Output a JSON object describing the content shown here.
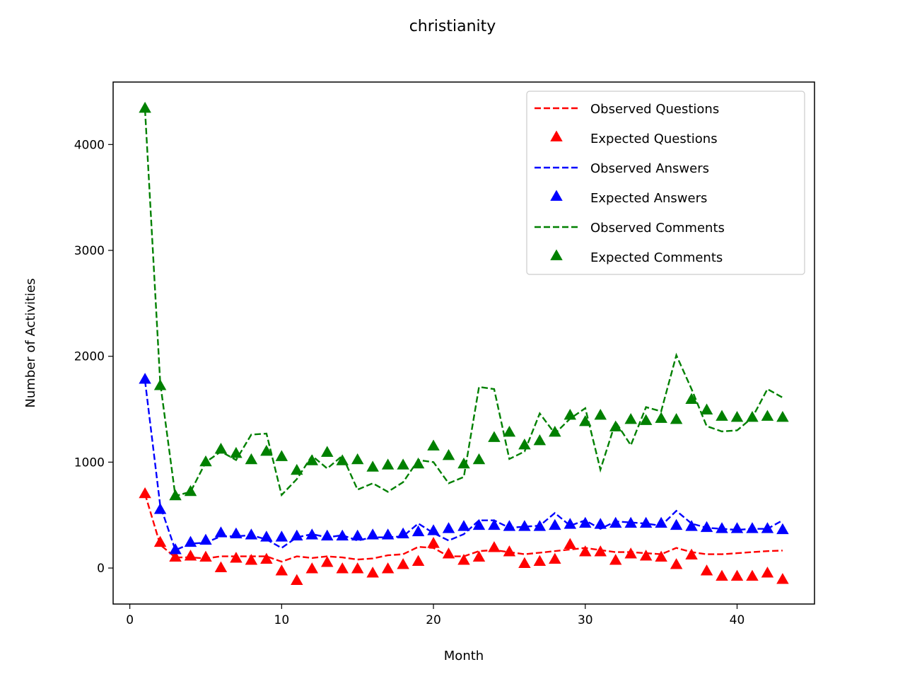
{
  "chart_data": {
    "type": "line",
    "title": "christianity",
    "xlabel": "Month",
    "ylabel": "Number of Activities",
    "xlim": [
      -1.1,
      45.1
    ],
    "ylim": [
      -340,
      4590
    ],
    "xticks": [
      0,
      10,
      20,
      30,
      40
    ],
    "yticks": [
      0,
      1000,
      2000,
      3000,
      4000
    ],
    "grid": false,
    "legend": {
      "placement": "top-right"
    },
    "x": [
      1,
      2,
      3,
      4,
      5,
      6,
      7,
      8,
      9,
      10,
      11,
      12,
      13,
      14,
      15,
      16,
      17,
      18,
      19,
      20,
      21,
      22,
      23,
      24,
      25,
      26,
      27,
      28,
      29,
      30,
      31,
      32,
      33,
      34,
      35,
      36,
      37,
      38,
      39,
      40,
      41,
      42,
      43
    ],
    "series": [
      {
        "name": "Observed Questions",
        "style": "dashed-line",
        "color": "#ff0000",
        "values": [
          700,
          220,
          100,
          100,
          90,
          110,
          110,
          110,
          110,
          60,
          110,
          95,
          110,
          100,
          80,
          90,
          120,
          130,
          200,
          190,
          110,
          110,
          160,
          170,
          150,
          130,
          145,
          160,
          175,
          190,
          170,
          150,
          150,
          140,
          130,
          190,
          150,
          130,
          130,
          140,
          150,
          160,
          165
        ]
      },
      {
        "name": "Expected Questions",
        "style": "triangle-markers",
        "color": "#ff0000",
        "values": [
          700,
          240,
          100,
          110,
          100,
          0,
          90,
          70,
          80,
          -30,
          -120,
          -10,
          50,
          -10,
          -10,
          -50,
          -10,
          30,
          60,
          230,
          130,
          70,
          100,
          190,
          150,
          40,
          60,
          80,
          220,
          150,
          150,
          70,
          130,
          110,
          100,
          30,
          120,
          -30,
          -80,
          -80,
          -80,
          -50,
          -110
        ]
      },
      {
        "name": "Observed Answers",
        "style": "dashed-line",
        "color": "#0000ff",
        "values": [
          1770,
          590,
          170,
          230,
          240,
          300,
          300,
          310,
          270,
          190,
          290,
          320,
          290,
          310,
          260,
          290,
          290,
          300,
          420,
          330,
          260,
          320,
          450,
          450,
          380,
          390,
          400,
          520,
          400,
          450,
          370,
          440,
          430,
          420,
          400,
          540,
          420,
          380,
          370,
          360,
          370,
          370,
          450
        ]
      },
      {
        "name": "Expected Answers",
        "style": "triangle-markers",
        "color": "#0000ff",
        "values": [
          1780,
          550,
          170,
          240,
          260,
          330,
          320,
          310,
          290,
          290,
          300,
          310,
          300,
          300,
          300,
          310,
          310,
          320,
          340,
          350,
          370,
          390,
          400,
          400,
          390,
          390,
          390,
          400,
          410,
          420,
          410,
          420,
          420,
          420,
          420,
          400,
          390,
          380,
          370,
          370,
          370,
          370,
          360
        ]
      },
      {
        "name": "Observed Comments",
        "style": "dashed-line",
        "color": "#008000",
        "values": [
          4330,
          1750,
          680,
          720,
          1000,
          1100,
          1020,
          1260,
          1270,
          690,
          840,
          1060,
          940,
          1060,
          740,
          800,
          720,
          810,
          1020,
          1000,
          800,
          860,
          1710,
          1690,
          1030,
          1100,
          1460,
          1270,
          1410,
          1510,
          930,
          1380,
          1160,
          1520,
          1480,
          2010,
          1690,
          1340,
          1290,
          1300,
          1420,
          1690,
          1610
        ]
      },
      {
        "name": "Expected Comments",
        "style": "triangle-markers",
        "color": "#008000",
        "values": [
          4340,
          1720,
          680,
          720,
          1000,
          1120,
          1080,
          1020,
          1100,
          1050,
          920,
          1010,
          1090,
          1010,
          1020,
          950,
          970,
          970,
          980,
          1150,
          1060,
          980,
          1020,
          1230,
          1280,
          1160,
          1200,
          1280,
          1440,
          1380,
          1440,
          1330,
          1400,
          1390,
          1410,
          1400,
          1590,
          1490,
          1430,
          1420,
          1420,
          1430,
          1420
        ]
      }
    ]
  }
}
